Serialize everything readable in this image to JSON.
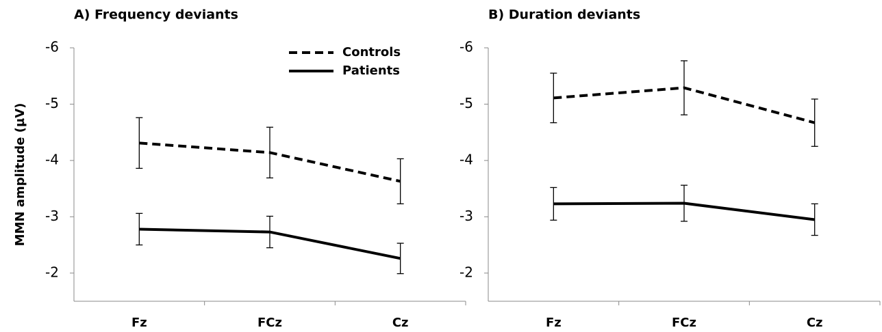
{
  "chart_data": [
    {
      "type": "line",
      "title": "A) Frequency deviants",
      "ylabel": "MMN amplitude (µV)",
      "categories": [
        "Fz",
        "FCz",
        "Cz"
      ],
      "series": [
        {
          "name": "Controls",
          "color": "#000000",
          "line_style": "dashed",
          "values": [
            -4.31,
            -4.14,
            -3.63
          ],
          "errors": [
            0.45,
            0.45,
            0.4
          ]
        },
        {
          "name": "Patients",
          "color": "#000000",
          "line_style": "solid",
          "values": [
            -2.78,
            -2.73,
            -2.26
          ],
          "errors": [
            0.28,
            0.28,
            0.27
          ]
        }
      ],
      "ylim": [
        -1.5,
        -6
      ],
      "yticks": [
        -6,
        -5,
        -4,
        -3,
        -2
      ],
      "legend": "top-right"
    },
    {
      "type": "line",
      "title": "B) Duration deviants",
      "categories": [
        "Fz",
        "FCz",
        "Cz"
      ],
      "series": [
        {
          "name": "Controls",
          "color": "#000000",
          "line_style": "dashed",
          "values": [
            -5.11,
            -5.29,
            -4.67
          ],
          "errors": [
            0.44,
            0.48,
            0.42
          ]
        },
        {
          "name": "Patients",
          "color": "#000000",
          "line_style": "solid",
          "values": [
            -3.23,
            -3.24,
            -2.95
          ],
          "errors": [
            0.29,
            0.32,
            0.28
          ]
        }
      ],
      "ylim": [
        -1.5,
        -6
      ],
      "yticks": [
        -6,
        -5,
        -4,
        -3,
        -2
      ]
    }
  ]
}
